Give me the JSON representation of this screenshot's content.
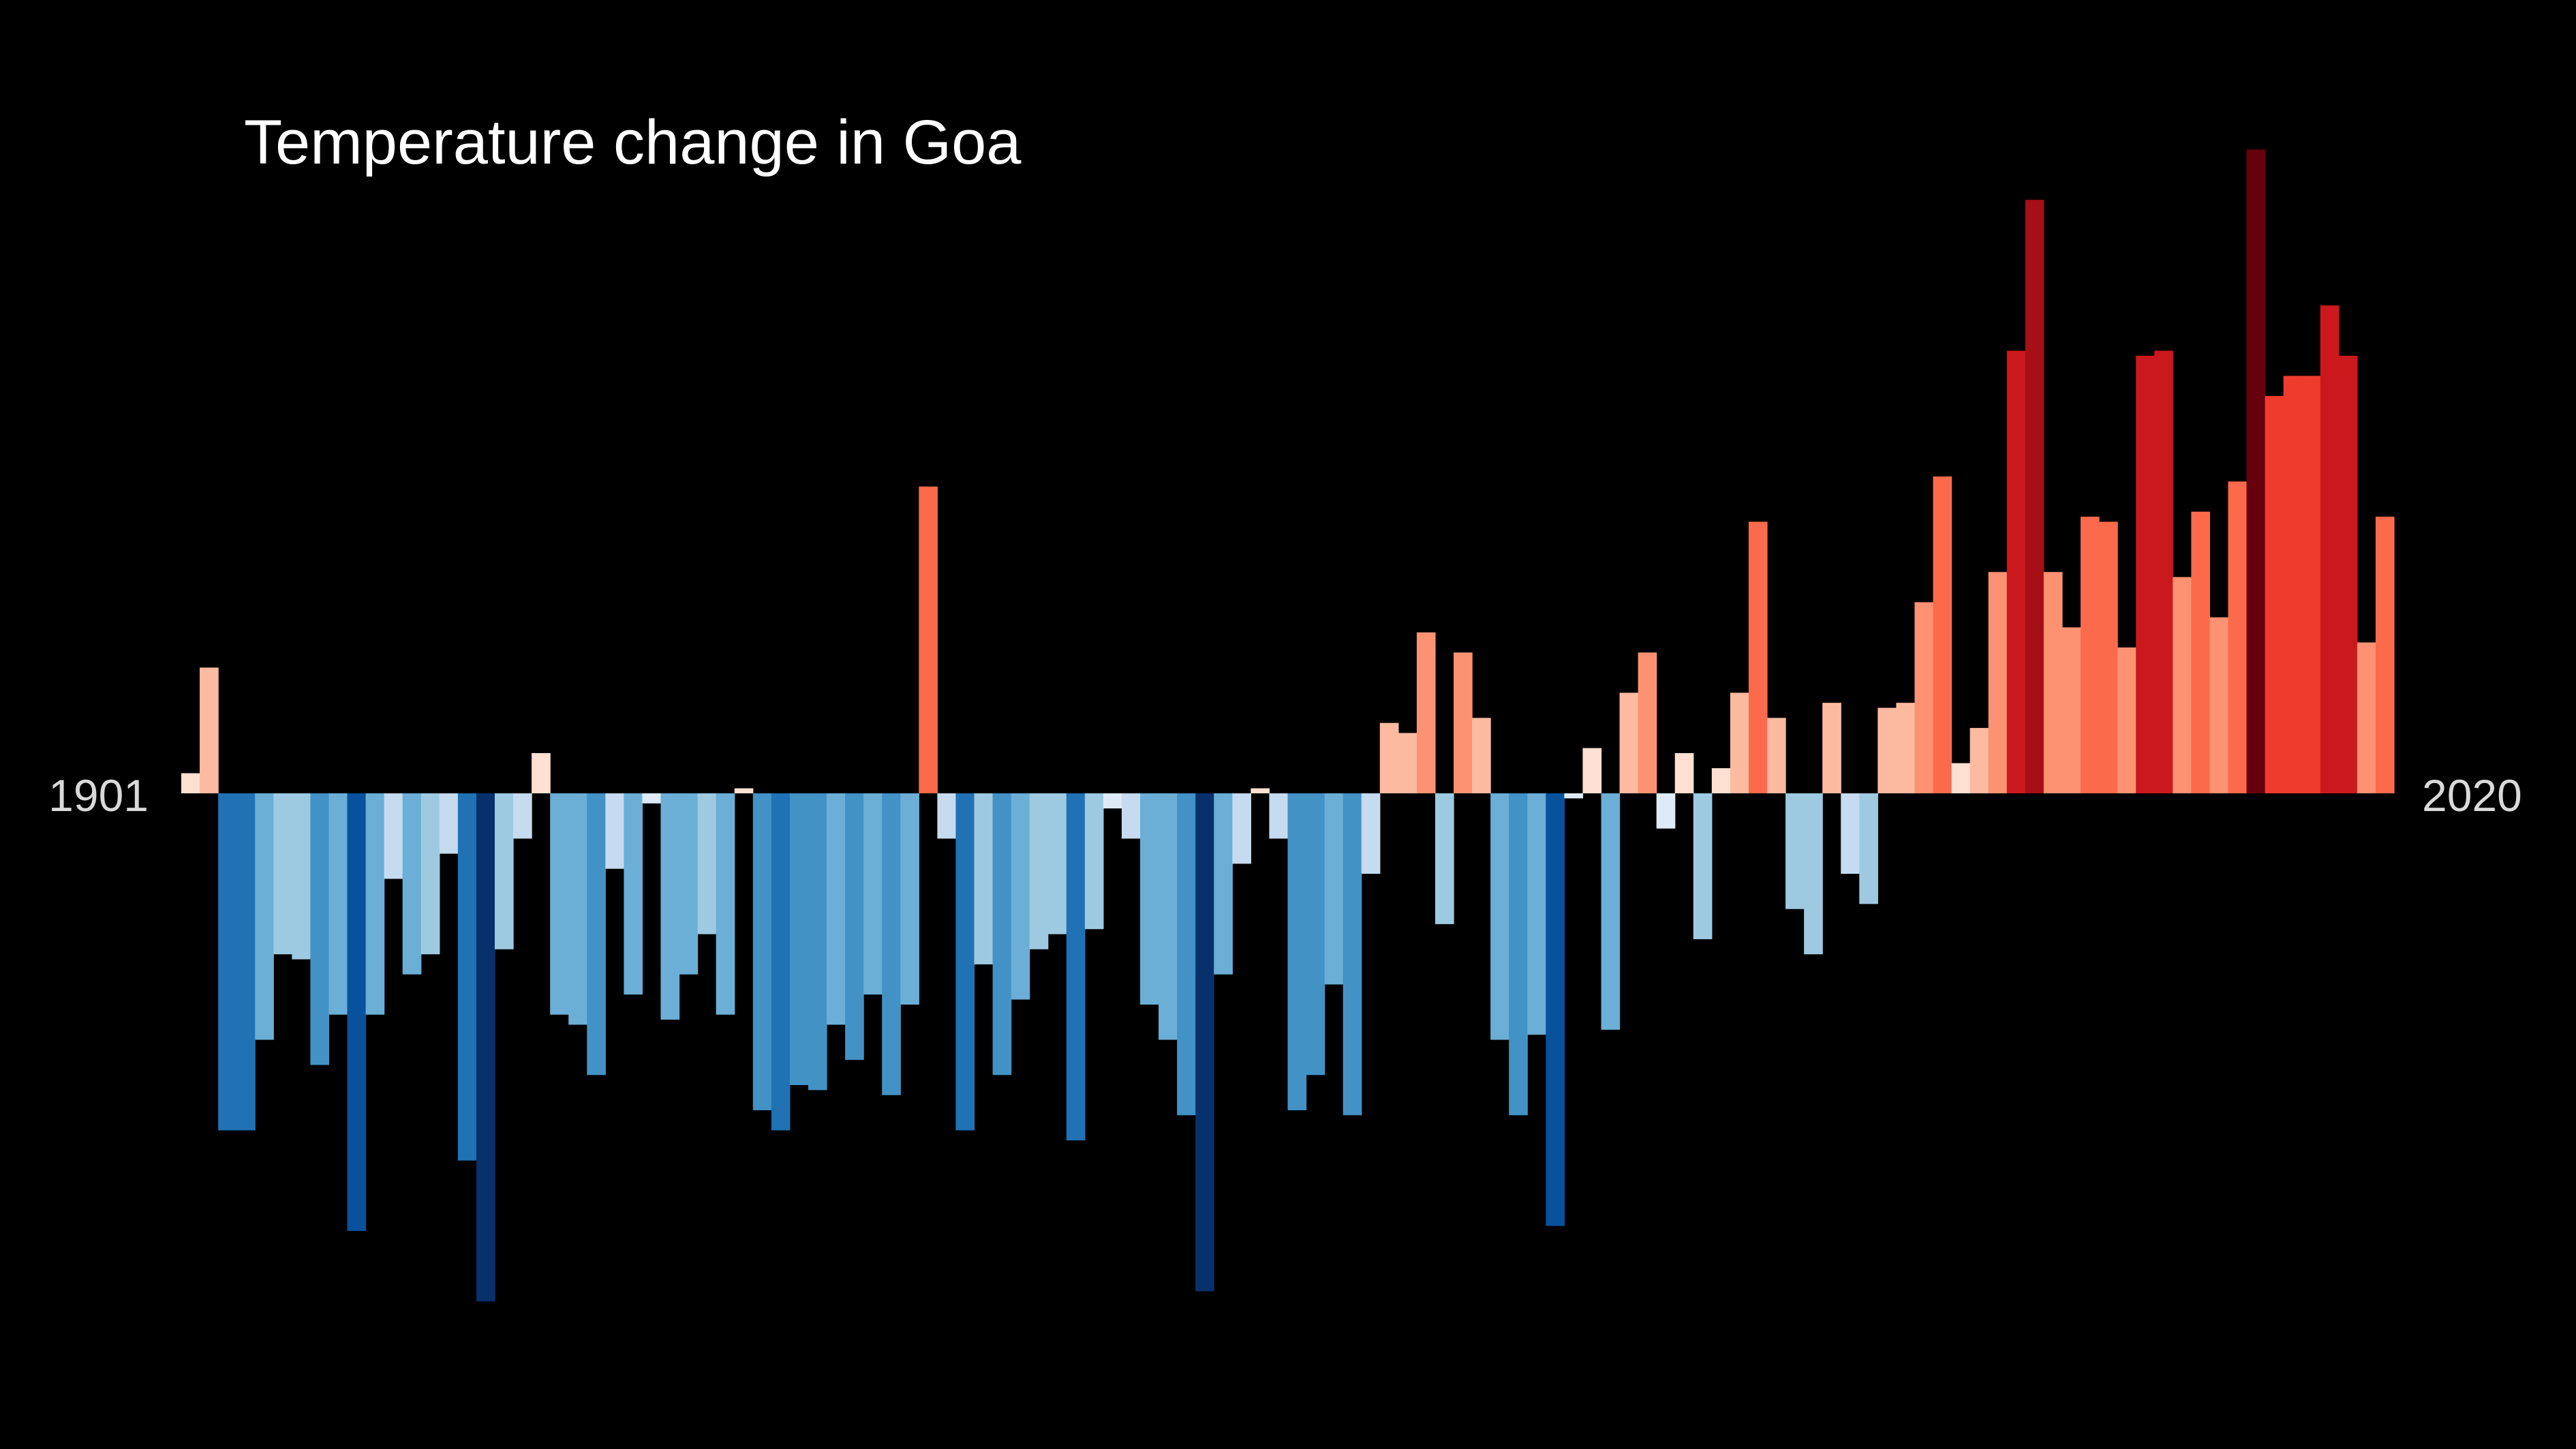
{
  "chart_data": {
    "type": "bar",
    "title": "Temperature change in Goa",
    "xlabel": "",
    "ylabel": "",
    "start_year": 1901,
    "end_year": 2020,
    "start_label": "1901",
    "end_label": "2020",
    "baseline": 0,
    "ylim": [
      -1.0,
      1.3
    ],
    "grid": false,
    "legend": "none",
    "values": [
      0.04,
      0.25,
      -0.67,
      -0.67,
      -0.49,
      -0.32,
      -0.33,
      -0.54,
      -0.44,
      -0.87,
      -0.44,
      -0.17,
      -0.36,
      -0.32,
      -0.12,
      -0.73,
      -1.01,
      -0.31,
      -0.09,
      0.08,
      -0.44,
      -0.46,
      -0.56,
      -0.15,
      -0.4,
      -0.02,
      -0.45,
      -0.36,
      -0.28,
      -0.44,
      0.01,
      -0.63,
      -0.67,
      -0.58,
      -0.59,
      -0.46,
      -0.53,
      -0.4,
      -0.6,
      -0.42,
      0.61,
      -0.09,
      -0.67,
      -0.34,
      -0.56,
      -0.41,
      -0.31,
      -0.28,
      -0.69,
      -0.27,
      -0.03,
      -0.09,
      -0.42,
      -0.49,
      -0.64,
      -0.99,
      -0.36,
      -0.14,
      0.01,
      -0.09,
      -0.63,
      -0.56,
      -0.38,
      -0.64,
      -0.16,
      0.14,
      0.12,
      0.32,
      -0.26,
      0.28,
      0.15,
      -0.49,
      -0.64,
      -0.48,
      -0.86,
      -0.01,
      0.09,
      -0.47,
      0.2,
      0.28,
      -0.07,
      0.08,
      -0.29,
      0.05,
      0.2,
      0.54,
      0.15,
      -0.23,
      -0.32,
      0.18,
      -0.16,
      -0.22,
      0.17,
      0.18,
      0.38,
      0.63,
      0.06,
      0.13,
      0.44,
      0.88,
      1.18,
      0.44,
      0.33,
      0.55,
      0.54,
      0.29,
      0.87,
      0.88,
      0.43,
      0.56,
      0.35,
      0.62,
      1.28,
      0.79,
      0.83,
      0.83,
      0.97,
      0.87,
      0.3,
      0.55
    ]
  }
}
